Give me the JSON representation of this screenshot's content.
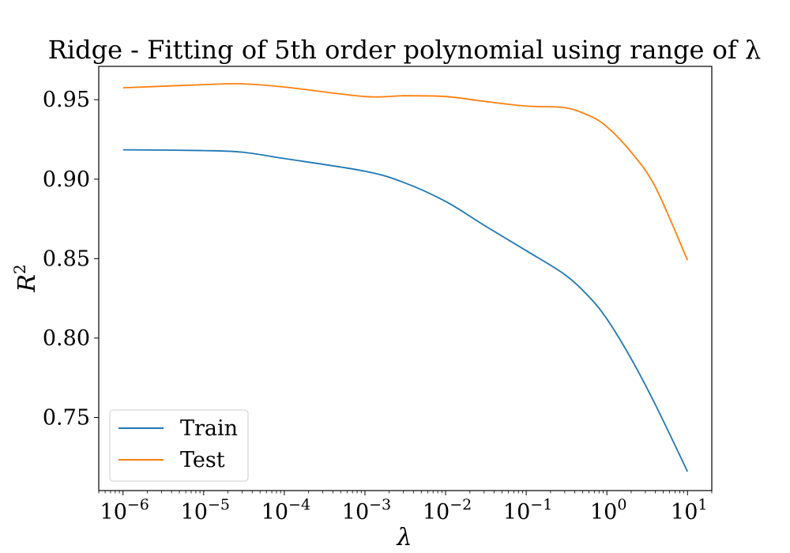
{
  "chart_data": {
    "type": "line",
    "title": "Ridge - Fitting of 5th order polynomial using range of λ",
    "xlabel": "λ",
    "ylabel": "R",
    "ylabel_superscript": "2",
    "xscale": "log",
    "xlim": [
      5e-07,
      20
    ],
    "ylim": [
      0.704,
      0.971
    ],
    "grid": false,
    "legend_position": "lower-left",
    "x_ticks": [
      {
        "base": "10",
        "exp": "−6",
        "value": 1e-06
      },
      {
        "base": "10",
        "exp": "−5",
        "value": 1e-05
      },
      {
        "base": "10",
        "exp": "−4",
        "value": 0.0001
      },
      {
        "base": "10",
        "exp": "−3",
        "value": 0.001
      },
      {
        "base": "10",
        "exp": "−2",
        "value": 0.01
      },
      {
        "base": "10",
        "exp": "−1",
        "value": 0.1
      },
      {
        "base": "10",
        "exp": "0",
        "value": 1
      },
      {
        "base": "10",
        "exp": "1",
        "value": 10
      }
    ],
    "y_ticks": [
      {
        "label": "0.75",
        "value": 0.75
      },
      {
        "label": "0.80",
        "value": 0.8
      },
      {
        "label": "0.85",
        "value": 0.85
      },
      {
        "label": "0.90",
        "value": 0.9
      },
      {
        "label": "0.95",
        "value": 0.95
      }
    ],
    "x": [
      1e-06,
      1e-05,
      3e-05,
      0.0001,
      0.001,
      0.003,
      0.01,
      0.03,
      0.1,
      0.3,
      0.6,
      1,
      2,
      4,
      10
    ],
    "series": [
      {
        "name": "Train",
        "color": "#1f77b4",
        "values": [
          0.9185,
          0.918,
          0.917,
          0.913,
          0.905,
          0.898,
          0.886,
          0.871,
          0.855,
          0.84,
          0.826,
          0.812,
          0.787,
          0.758,
          0.716
        ]
      },
      {
        "name": "Test",
        "color": "#ff7f0e",
        "values": [
          0.9575,
          0.9595,
          0.96,
          0.958,
          0.952,
          0.9525,
          0.952,
          0.949,
          0.946,
          0.945,
          0.94,
          0.933,
          0.917,
          0.895,
          0.849
        ]
      }
    ]
  }
}
